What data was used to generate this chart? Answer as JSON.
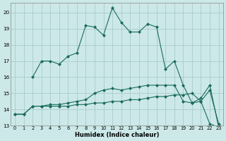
{
  "title": "",
  "xlabel": "Humidex (Indice chaleur)",
  "bg_color": "#cce8e8",
  "grid_color": "#aacccc",
  "line_color": "#1a6b5e",
  "xlim": [
    -0.5,
    23.5
  ],
  "ylim": [
    13,
    20.6
  ],
  "yticks": [
    13,
    14,
    15,
    16,
    17,
    18,
    19,
    20
  ],
  "xticks": [
    0,
    1,
    2,
    3,
    4,
    5,
    6,
    7,
    8,
    9,
    10,
    11,
    12,
    13,
    14,
    15,
    16,
    17,
    18,
    19,
    20,
    21,
    22,
    23
  ],
  "series": [
    {
      "x": [
        0,
        1,
        2,
        3,
        4,
        5,
        6,
        7,
        8,
        9,
        10,
        11,
        12,
        13,
        14,
        15,
        16,
        17,
        18,
        19,
        20,
        21,
        22,
        23
      ],
      "y": [
        13.7,
        13.7,
        14.2,
        14.2,
        14.2,
        14.2,
        14.2,
        14.3,
        14.3,
        14.4,
        14.4,
        14.5,
        14.5,
        14.6,
        14.6,
        14.7,
        14.8,
        14.8,
        14.9,
        14.9,
        15.0,
        14.5,
        13.1,
        12.9
      ]
    },
    {
      "x": [
        0,
        1,
        2,
        3,
        4,
        5,
        6,
        7,
        8,
        9,
        10,
        11,
        12,
        13,
        14,
        15,
        16,
        17,
        18,
        19,
        20,
        21,
        22,
        23
      ],
      "y": [
        13.7,
        13.7,
        14.2,
        14.2,
        14.3,
        14.3,
        14.4,
        14.5,
        14.6,
        15.0,
        15.2,
        15.3,
        15.2,
        15.3,
        15.4,
        15.5,
        15.5,
        15.5,
        15.5,
        14.5,
        14.4,
        14.5,
        15.2,
        13.1
      ]
    },
    {
      "x": [
        2,
        3,
        4,
        5,
        6,
        7,
        8,
        9,
        10,
        11,
        12,
        13,
        14,
        15,
        16,
        17,
        18,
        19,
        20,
        21,
        22,
        23
      ],
      "y": [
        16.0,
        17.0,
        17.0,
        16.8,
        17.3,
        17.5,
        19.2,
        19.1,
        18.6,
        20.3,
        19.4,
        18.8,
        18.8,
        19.3,
        19.1,
        16.5,
        17.0,
        15.5,
        14.4,
        14.7,
        15.5,
        12.9
      ]
    }
  ]
}
